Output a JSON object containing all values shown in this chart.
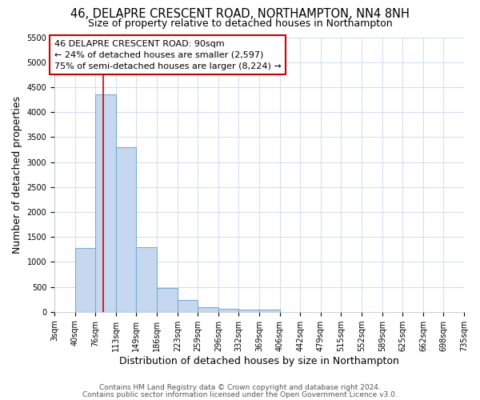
{
  "title": "46, DELAPRE CRESCENT ROAD, NORTHAMPTON, NN4 8NH",
  "subtitle": "Size of property relative to detached houses in Northampton",
  "xlabel": "Distribution of detached houses by size in Northampton",
  "ylabel": "Number of detached properties",
  "bin_edges": [
    3,
    40,
    76,
    113,
    149,
    186,
    223,
    259,
    296,
    332,
    369,
    406,
    442,
    479,
    515,
    552,
    589,
    625,
    662,
    698,
    735
  ],
  "bar_heights": [
    0,
    1270,
    4350,
    3300,
    1290,
    480,
    235,
    90,
    60,
    40,
    40,
    0,
    0,
    0,
    0,
    0,
    0,
    0,
    0,
    0
  ],
  "bar_color": "#c5d8f0",
  "bar_edge_color": "#7aadd4",
  "bar_linewidth": 0.8,
  "red_line_x": 90,
  "red_line_color": "#cc0000",
  "annotation_line1": "46 DELAPRE CRESCENT ROAD: 90sqm",
  "annotation_line2": "← 24% of detached houses are smaller (2,597)",
  "annotation_line3": "75% of semi-detached houses are larger (8,224) →",
  "annotation_bbox_color": "white",
  "annotation_bbox_edge": "#cc0000",
  "ylim": [
    0,
    5500
  ],
  "yticks": [
    0,
    500,
    1000,
    1500,
    2000,
    2500,
    3000,
    3500,
    4000,
    4500,
    5000,
    5500
  ],
  "xtick_labels": [
    "3sqm",
    "40sqm",
    "76sqm",
    "113sqm",
    "149sqm",
    "186sqm",
    "223sqm",
    "259sqm",
    "296sqm",
    "332sqm",
    "369sqm",
    "406sqm",
    "442sqm",
    "479sqm",
    "515sqm",
    "552sqm",
    "589sqm",
    "625sqm",
    "662sqm",
    "698sqm",
    "735sqm"
  ],
  "footer1": "Contains HM Land Registry data © Crown copyright and database right 2024.",
  "footer2": "Contains public sector information licensed under the Open Government Licence v3.0.",
  "background_color": "#ffffff",
  "grid_color": "#d0daf0",
  "title_fontsize": 10.5,
  "subtitle_fontsize": 9,
  "axis_label_fontsize": 9,
  "tick_fontsize": 7,
  "footer_fontsize": 6.5,
  "annotation_fontsize": 8
}
